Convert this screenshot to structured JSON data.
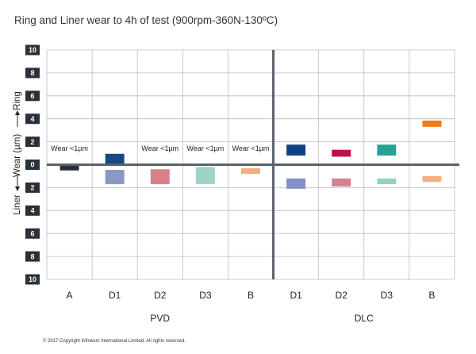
{
  "chart_data": {
    "type": "bar",
    "title": "Ring and Liner wear to 4h of test (900rpm-360N-130ºC)",
    "ylabel_parts": {
      "liner": "Liner",
      "wear": "Wear (µm)",
      "ring": "Ring"
    },
    "ylim": [
      -10,
      10
    ],
    "yticks": [
      {
        "value": 10,
        "label": "10"
      },
      {
        "value": 8,
        "label": "8"
      },
      {
        "value": 6,
        "label": "6"
      },
      {
        "value": 4,
        "label": "4"
      },
      {
        "value": 2,
        "label": "2"
      },
      {
        "value": 0,
        "label": "0"
      },
      {
        "value": -2,
        "label": "2"
      },
      {
        "value": -4,
        "label": "4"
      },
      {
        "value": -6,
        "label": "6"
      },
      {
        "value": -8,
        "label": "8"
      },
      {
        "value": -10,
        "label": "10"
      }
    ],
    "categories": [
      "A",
      "D1",
      "D2",
      "D3",
      "B",
      "D1",
      "D2",
      "D3",
      "B"
    ],
    "groups": [
      {
        "name": "PVD",
        "start": 0,
        "end": 4
      },
      {
        "name": "DLC",
        "start": 5,
        "end": 8
      }
    ],
    "series": [
      {
        "name": "Ring",
        "ranges": [
          null,
          [
            0.1,
            0.95
          ],
          null,
          null,
          null,
          [
            0.8,
            1.75
          ],
          [
            0.7,
            1.3
          ],
          [
            0.8,
            1.75
          ],
          [
            3.3,
            3.85
          ]
        ]
      },
      {
        "name": "Liner",
        "ranges": [
          [
            -0.5,
            0
          ],
          [
            -1.7,
            -0.45
          ],
          [
            -1.7,
            -0.4
          ],
          [
            -1.7,
            -0.2
          ],
          [
            -0.8,
            -0.3
          ],
          [
            -2.1,
            -1.2
          ],
          [
            -1.9,
            -1.2
          ],
          [
            -1.7,
            -1.2
          ],
          [
            -1.5,
            -1.0
          ]
        ]
      }
    ],
    "colors": {
      "ring": [
        "#1e2830",
        "#1c4787",
        "#c22a4f",
        "#2a9e8d",
        "#f5b07f",
        "#0d4386",
        "#c00e4f",
        "#22a394",
        "#f07b1a"
      ],
      "liner": [
        "#2a2f36",
        "#8d97c4",
        "#d6818e",
        "#9ed3c8",
        "#f5b07f",
        "#8391c6",
        "#d6818e",
        "#92d2c4",
        "#f5b07f"
      ]
    },
    "annotations": [
      {
        "category_index": 0,
        "text": "Wear <1µm"
      },
      {
        "category_index": 2,
        "text": "Wear <1µm"
      },
      {
        "category_index": 3,
        "text": "Wear <1µm"
      },
      {
        "category_index": 4,
        "text": "Wear <1µm"
      }
    ],
    "grid": true,
    "axis_color": "#5a626b"
  },
  "footer": "© 2017 Copyright Infineum International Limited. All rights reserved."
}
